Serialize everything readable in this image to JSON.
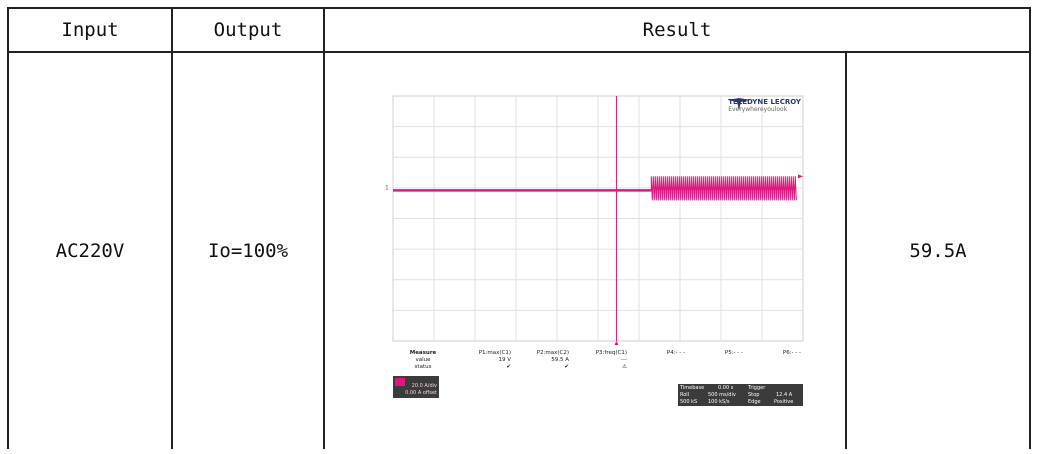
{
  "table": {
    "headers": [
      "Input",
      "Output",
      "Result"
    ],
    "row": {
      "input": "AC220V",
      "output": "Io=100%",
      "result": "59.5A"
    }
  },
  "scope": {
    "brand": "TELEDYNE LECROY",
    "tagline": "Everywhereyoulook",
    "measure": {
      "header": [
        "Measure",
        "P1:max(C1)",
        "P2:max(C2)",
        "P3:freq(C1)",
        "P4:- - -",
        "P5:- - -",
        "P6:- - -"
      ],
      "value": [
        "value",
        "19 V",
        "59.5 A",
        "---",
        "",
        "",
        ""
      ],
      "status": [
        "status",
        "✔",
        "✔",
        "⚠",
        "",
        "",
        ""
      ]
    },
    "channel": {
      "scale": "20.0 A/div",
      "offset": "0.00 A offset"
    },
    "timebase": {
      "timebase_label": "Timebase",
      "timebase_value": "0.00 s",
      "mode": "Roll",
      "time_div": "500 ms/div",
      "samples": "500 kS",
      "rate": "100 kS/s",
      "trigger_label": "Trigger",
      "trigger_mode": "Stop",
      "trigger_level": "12.4 A",
      "trigger_type": "Edge",
      "trigger_slope": "Positive"
    },
    "trace_color": "#e0157e"
  }
}
